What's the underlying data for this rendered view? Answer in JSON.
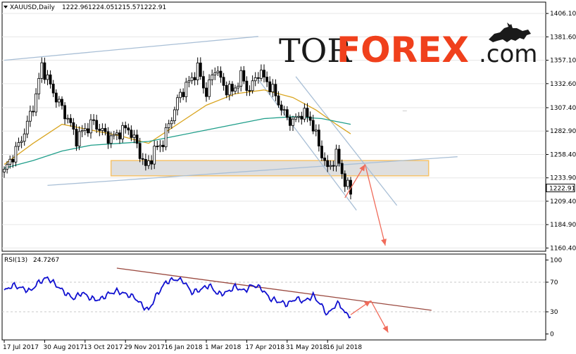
{
  "chart_data": [
    {
      "type": "candlestick",
      "panel": "price",
      "header": {
        "symbol": "XAUUSD,Daily",
        "open": "1222.96",
        "high": "1224.05",
        "low": "1215.57",
        "close": "1222.91"
      },
      "current_price_label": "1222.91",
      "y_ticks": [
        "1406.10",
        "1381.60",
        "1357.10",
        "1332.60",
        "1307.40",
        "1282.90",
        "1258.40",
        "1233.90",
        "1209.40",
        "1184.90",
        "1160.40"
      ],
      "ylim": [
        1157,
        1418
      ],
      "price_anchors": [
        {
          "t": 0,
          "p": 1240
        },
        {
          "t": 2,
          "p": 1252
        },
        {
          "t": 5,
          "p": 1268
        },
        {
          "t": 8,
          "p": 1290
        },
        {
          "t": 11,
          "p": 1320
        },
        {
          "t": 13,
          "p": 1352
        },
        {
          "t": 16,
          "p": 1330
        },
        {
          "t": 19,
          "p": 1312
        },
        {
          "t": 22,
          "p": 1296
        },
        {
          "t": 25,
          "p": 1275
        },
        {
          "t": 28,
          "p": 1285
        },
        {
          "t": 31,
          "p": 1292
        },
        {
          "t": 34,
          "p": 1282
        },
        {
          "t": 37,
          "p": 1275
        },
        {
          "t": 40,
          "p": 1282
        },
        {
          "t": 43,
          "p": 1286
        },
        {
          "t": 46,
          "p": 1268
        },
        {
          "t": 49,
          "p": 1244
        },
        {
          "t": 52,
          "p": 1262
        },
        {
          "t": 55,
          "p": 1272
        },
        {
          "t": 58,
          "p": 1298
        },
        {
          "t": 61,
          "p": 1322
        },
        {
          "t": 64,
          "p": 1334
        },
        {
          "t": 67,
          "p": 1348
        },
        {
          "t": 70,
          "p": 1322
        },
        {
          "t": 73,
          "p": 1350
        },
        {
          "t": 76,
          "p": 1330
        },
        {
          "t": 79,
          "p": 1324
        },
        {
          "t": 82,
          "p": 1340
        },
        {
          "t": 85,
          "p": 1325
        },
        {
          "t": 88,
          "p": 1345
        },
        {
          "t": 91,
          "p": 1335
        },
        {
          "t": 94,
          "p": 1320
        },
        {
          "t": 97,
          "p": 1300
        },
        {
          "t": 100,
          "p": 1292
        },
        {
          "t": 103,
          "p": 1302
        },
        {
          "t": 106,
          "p": 1296
        },
        {
          "t": 109,
          "p": 1268
        },
        {
          "t": 112,
          "p": 1242
        },
        {
          "t": 115,
          "p": 1258
        },
        {
          "t": 118,
          "p": 1230
        },
        {
          "t": 120,
          "p": 1218
        }
      ],
      "moving_averages": [
        {
          "color": "#d9a520",
          "points": [
            {
              "t": 0,
              "p": 1248
            },
            {
              "t": 10,
              "p": 1270
            },
            {
              "t": 20,
              "p": 1290
            },
            {
              "t": 30,
              "p": 1284
            },
            {
              "t": 40,
              "p": 1278
            },
            {
              "t": 50,
              "p": 1270
            },
            {
              "t": 60,
              "p": 1290
            },
            {
              "t": 70,
              "p": 1310
            },
            {
              "t": 80,
              "p": 1322
            },
            {
              "t": 90,
              "p": 1326
            },
            {
              "t": 100,
              "p": 1318
            },
            {
              "t": 108,
              "p": 1305
            },
            {
              "t": 115,
              "p": 1290
            },
            {
              "t": 120,
              "p": 1280
            }
          ]
        },
        {
          "color": "#1f9e8a",
          "points": [
            {
              "t": 0,
              "p": 1244
            },
            {
              "t": 10,
              "p": 1252
            },
            {
              "t": 20,
              "p": 1262
            },
            {
              "t": 30,
              "p": 1268
            },
            {
              "t": 40,
              "p": 1270
            },
            {
              "t": 50,
              "p": 1272
            },
            {
              "t": 60,
              "p": 1278
            },
            {
              "t": 70,
              "p": 1284
            },
            {
              "t": 80,
              "p": 1290
            },
            {
              "t": 90,
              "p": 1296
            },
            {
              "t": 100,
              "p": 1298
            },
            {
              "t": 110,
              "p": 1296
            },
            {
              "t": 120,
              "p": 1290
            }
          ]
        }
      ],
      "trend_lines": [
        {
          "color": "#a9bfd6",
          "points": [
            {
              "t": 0,
              "p": 1357.1
            },
            {
              "t": 88,
              "p": 1382
            }
          ]
        },
        {
          "color": "#a9bfd6",
          "points": [
            {
              "t": 15,
              "p": 1226
            },
            {
              "t": 157,
              "p": 1256
            }
          ]
        },
        {
          "color": "#a9bfd6",
          "points": [
            {
              "t": 88,
              "p": 1337
            },
            {
              "t": 122,
              "p": 1200
            }
          ]
        },
        {
          "color": "#a9bfd6",
          "points": [
            {
              "t": 101,
              "p": 1340
            },
            {
              "t": 136,
              "p": 1205
            }
          ]
        }
      ],
      "zone": {
        "t_from": 37,
        "t_to": 147,
        "p_from": 1236,
        "p_to": 1252,
        "fill": "#d9d9d9",
        "stroke": "#f5c26b"
      },
      "forecast_arrows": [
        {
          "color": "#f06b5a",
          "points": [
            {
              "t": 118,
              "p": 1213
            },
            {
              "t": 125,
              "p": 1248
            },
            {
              "t": 132,
              "p": 1163
            }
          ]
        }
      ],
      "dash_ticks": [
        {
          "t": 138,
          "p": 1304
        }
      ]
    },
    {
      "type": "line",
      "panel": "rsi",
      "header": {
        "name": "RSI(13)",
        "value": "24.7267"
      },
      "y_ticks": [
        "100",
        "70",
        "30",
        "0"
      ],
      "ylim": [
        -8,
        108
      ],
      "levels": [
        70,
        30
      ],
      "series_color": "#1010d0",
      "rsi_anchors": [
        {
          "t": 0,
          "p": 58
        },
        {
          "t": 3,
          "p": 66
        },
        {
          "t": 6,
          "p": 62
        },
        {
          "t": 9,
          "p": 58
        },
        {
          "t": 12,
          "p": 70
        },
        {
          "t": 15,
          "p": 76
        },
        {
          "t": 18,
          "p": 66
        },
        {
          "t": 21,
          "p": 56
        },
        {
          "t": 24,
          "p": 48
        },
        {
          "t": 27,
          "p": 56
        },
        {
          "t": 30,
          "p": 48
        },
        {
          "t": 33,
          "p": 46
        },
        {
          "t": 36,
          "p": 54
        },
        {
          "t": 39,
          "p": 58
        },
        {
          "t": 42,
          "p": 54
        },
        {
          "t": 45,
          "p": 50
        },
        {
          "t": 48,
          "p": 38
        },
        {
          "t": 50,
          "p": 32
        },
        {
          "t": 53,
          "p": 54
        },
        {
          "t": 56,
          "p": 70
        },
        {
          "t": 59,
          "p": 74
        },
        {
          "t": 62,
          "p": 72
        },
        {
          "t": 65,
          "p": 56
        },
        {
          "t": 68,
          "p": 60
        },
        {
          "t": 71,
          "p": 66
        },
        {
          "t": 74,
          "p": 54
        },
        {
          "t": 77,
          "p": 56
        },
        {
          "t": 80,
          "p": 64
        },
        {
          "t": 83,
          "p": 58
        },
        {
          "t": 86,
          "p": 66
        },
        {
          "t": 89,
          "p": 62
        },
        {
          "t": 92,
          "p": 48
        },
        {
          "t": 95,
          "p": 44
        },
        {
          "t": 98,
          "p": 40
        },
        {
          "t": 101,
          "p": 48
        },
        {
          "t": 104,
          "p": 44
        },
        {
          "t": 107,
          "p": 52
        },
        {
          "t": 110,
          "p": 38
        },
        {
          "t": 112,
          "p": 26
        },
        {
          "t": 114,
          "p": 36
        },
        {
          "t": 116,
          "p": 42
        },
        {
          "t": 118,
          "p": 28
        },
        {
          "t": 120,
          "p": 24.73
        }
      ],
      "trend_lines": [
        {
          "color": "#9b4a40",
          "points": [
            {
              "t": 39,
              "p": 89
            },
            {
              "t": 148,
              "p": 32
            }
          ]
        }
      ],
      "forecast_arrows": [
        {
          "color": "#f06b5a",
          "points": [
            {
              "t": 120,
              "p": 26
            },
            {
              "t": 127,
              "p": 45
            },
            {
              "t": 133,
              "p": 2
            }
          ]
        }
      ]
    }
  ],
  "x_axis": {
    "ticks": [
      {
        "label": "17 Jul 2017",
        "t": 0
      },
      {
        "label": "30 Aug 2017",
        "t": 14
      },
      {
        "label": "13 Oct 2017",
        "t": 28
      },
      {
        "label": "29 Nov 2017",
        "t": 42
      },
      {
        "label": "16 Jan 2018",
        "t": 56
      },
      {
        "label": "1 Mar 2018",
        "t": 70
      },
      {
        "label": "17 Apr 2018",
        "t": 84
      },
      {
        "label": "31 May 2018",
        "t": 98
      },
      {
        "label": "16 Jul 2018",
        "t": 112
      }
    ]
  },
  "watermark": {
    "part1": "TOR",
    "part2": "FOREX",
    "part3": ".com"
  }
}
